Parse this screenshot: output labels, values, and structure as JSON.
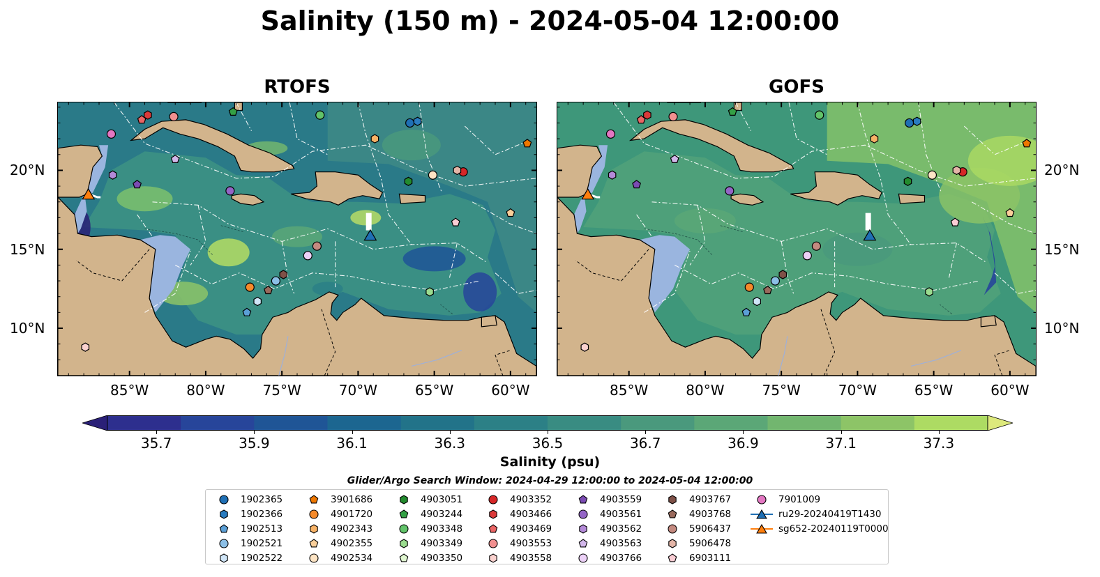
{
  "title": "Salinity (150 m) - 2024-05-04 12:00:00",
  "panels": [
    {
      "title": "RTOFS"
    },
    {
      "title": "GOFS"
    }
  ],
  "lon_ticks": [
    "85°W",
    "80°W",
    "75°W",
    "70°W",
    "65°W",
    "60°W"
  ],
  "lat_ticks": [
    "20°N",
    "15°N",
    "10°N"
  ],
  "map_extent": {
    "lon": [
      -89.7,
      -58.3
    ],
    "lat": [
      7.0,
      24.3
    ]
  },
  "colorbar": {
    "label": "Salinity (psu)",
    "min": 35.6,
    "max": 37.4,
    "ticks": [
      "35.7",
      "35.9",
      "36.1",
      "36.3",
      "36.5",
      "36.7",
      "36.9",
      "37.1",
      "37.3"
    ],
    "colors": [
      "#2a2077",
      "#2d2f8e",
      "#27459a",
      "#1f5596",
      "#1c6690",
      "#227389",
      "#2c8086",
      "#398c82",
      "#4a997d",
      "#5ba777",
      "#72b66f",
      "#8dc467",
      "#addb63",
      "#dde97c"
    ],
    "extend": "both"
  },
  "search_window": "Glider/Argo Search Window: 2024-04-29 12:00:00 to 2024-05-04 12:00:00",
  "floats": [
    {
      "id": "1902365",
      "marker": "circle",
      "color": "#1f6fb4",
      "lon": -66.6,
      "lat": 23.0
    },
    {
      "id": "1902366",
      "marker": "hexagon",
      "color": "#2a7cc0",
      "lon": -66.1,
      "lat": 23.1
    },
    {
      "id": "1902513",
      "marker": "pentagon",
      "color": "#5b9fd6",
      "lon": -77.3,
      "lat": 11.0
    },
    {
      "id": "1902521",
      "marker": "circle",
      "color": "#8cbfe6",
      "lon": -75.4,
      "lat": 13.0
    },
    {
      "id": "1902522",
      "marker": "hexagon",
      "color": "#cfe5f7",
      "lon": -76.6,
      "lat": 11.7
    },
    {
      "id": "3901686",
      "marker": "pentagon",
      "color": "#ee7700",
      "lon": -58.9,
      "lat": 21.7
    },
    {
      "id": "4901720",
      "marker": "circle",
      "color": "#f58a2a",
      "lon": -77.1,
      "lat": 12.6
    },
    {
      "id": "4902343",
      "marker": "hexagon",
      "color": "#f7b266",
      "lon": -68.9,
      "lat": 22.0
    },
    {
      "id": "4902355",
      "marker": "pentagon",
      "color": "#f9cf9a",
      "lon": -60.0,
      "lat": 17.3
    },
    {
      "id": "4902534",
      "marker": "circle",
      "color": "#fde4c4",
      "lon": -65.1,
      "lat": 19.7
    },
    {
      "id": "4903051",
      "marker": "hexagon",
      "color": "#238b2e",
      "lon": -66.7,
      "lat": 19.3
    },
    {
      "id": "4903244",
      "marker": "pentagon",
      "color": "#34a045",
      "lon": -78.2,
      "lat": 23.7
    },
    {
      "id": "4903348",
      "marker": "circle",
      "color": "#62c36a",
      "lon": -72.5,
      "lat": 23.5
    },
    {
      "id": "4903349",
      "marker": "hexagon",
      "color": "#9bdc8f",
      "lon": -65.3,
      "lat": 12.3
    },
    {
      "id": "4903350",
      "marker": "pentagon",
      "color": "#dff6cf",
      "lon": -73.3,
      "lat": 14.6
    },
    {
      "id": "4903352",
      "marker": "circle",
      "color": "#d62728",
      "lon": -63.1,
      "lat": 19.9
    },
    {
      "id": "4903466",
      "marker": "hexagon",
      "color": "#db3a3a",
      "lon": -83.8,
      "lat": 23.5
    },
    {
      "id": "4903469",
      "marker": "pentagon",
      "color": "#ea6565",
      "lon": -84.2,
      "lat": 23.2
    },
    {
      "id": "4903553",
      "marker": "circle",
      "color": "#f19090",
      "lon": -82.1,
      "lat": 23.4
    },
    {
      "id": "4903558",
      "marker": "hexagon",
      "color": "#fbd2cf",
      "lon": -87.9,
      "lat": 8.8
    },
    {
      "id": "4903559",
      "marker": "pentagon",
      "color": "#7b4bb3",
      "lon": -84.5,
      "lat": 19.1
    },
    {
      "id": "4903561",
      "marker": "circle",
      "color": "#9465c6",
      "lon": -78.4,
      "lat": 18.7
    },
    {
      "id": "4903562",
      "marker": "hexagon",
      "color": "#b48ad8",
      "lon": -86.1,
      "lat": 19.7
    },
    {
      "id": "4903563",
      "marker": "pentagon",
      "color": "#d2b7ea",
      "lon": -82.0,
      "lat": 20.7
    },
    {
      "id": "4903766",
      "marker": "circle",
      "color": "#ecd1f7",
      "lon": -73.3,
      "lat": 14.6
    },
    {
      "id": "4903767",
      "marker": "hexagon",
      "color": "#7f5148",
      "lon": -74.9,
      "lat": 13.4
    },
    {
      "id": "4903768",
      "marker": "pentagon",
      "color": "#9a6a5d",
      "lon": -75.9,
      "lat": 12.4
    },
    {
      "id": "5906437",
      "marker": "circle",
      "color": "#c48a80",
      "lon": -72.7,
      "lat": 15.2
    },
    {
      "id": "5906478",
      "marker": "hexagon",
      "color": "#e4b6a8",
      "lon": -63.5,
      "lat": 20.0
    },
    {
      "id": "6903111",
      "marker": "pentagon",
      "color": "#f9cdd4",
      "lon": -63.6,
      "lat": 16.7
    },
    {
      "id": "7901009",
      "marker": "circle",
      "color": "#e377c2",
      "lon": -86.2,
      "lat": 22.3
    }
  ],
  "gliders": [
    {
      "id": "ru29-20240419T1430",
      "marker": "triangle",
      "color": "#1f6fb4",
      "lon": -69.2,
      "lat": 15.9
    },
    {
      "id": "sg652-20240119T0000",
      "marker": "triangle",
      "color": "#ff7f0e",
      "lon": -87.7,
      "lat": 18.5
    }
  ]
}
